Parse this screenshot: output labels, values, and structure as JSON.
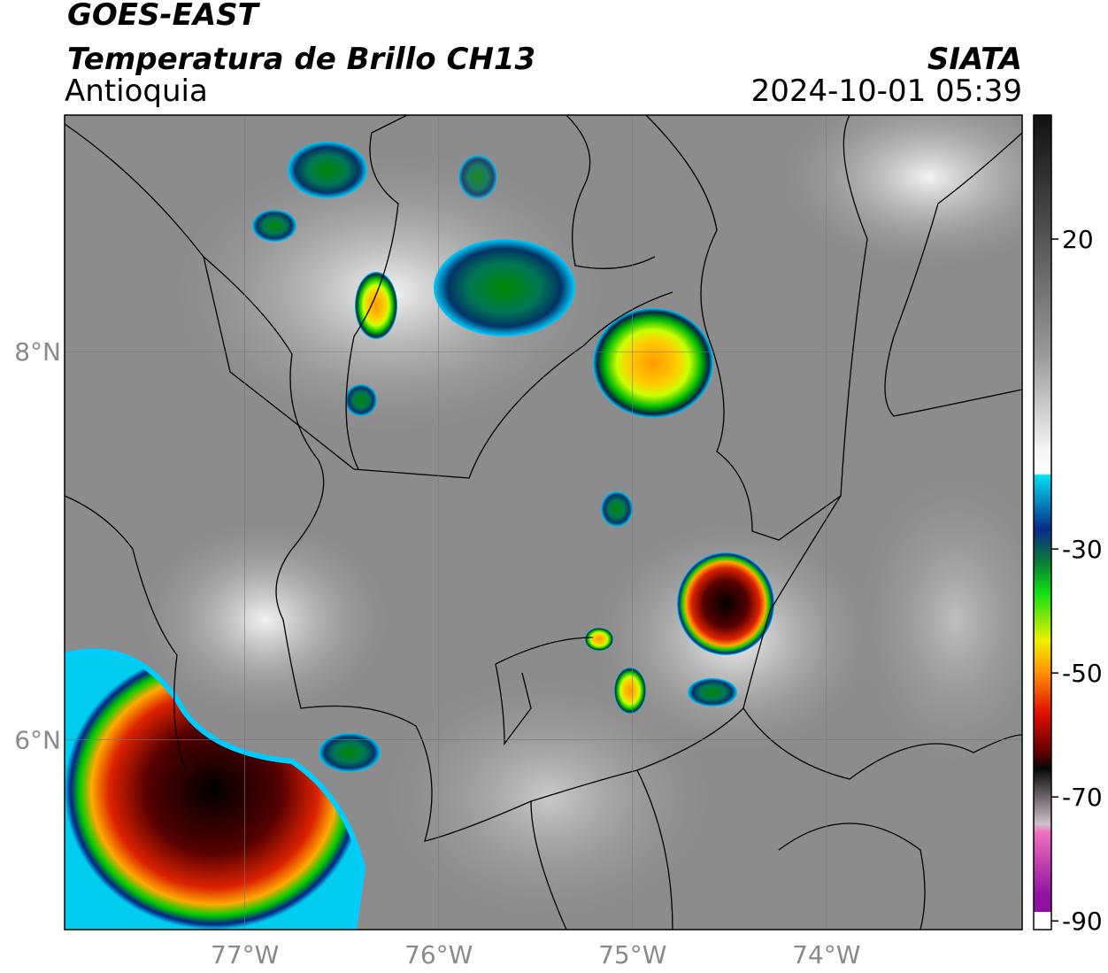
{
  "header": {
    "line1": "GOES-EAST",
    "line2": "Temperatura de Brillo CH13",
    "line3": "Antioquia",
    "source": "SIATA",
    "datetime": "2024-10-01 05:39"
  },
  "map": {
    "lon_range": [
      -77.93,
      -72.99
    ],
    "lat_range": [
      5.02,
      9.22
    ],
    "lat_ticks": [
      {
        "value": 8,
        "label": "8°N"
      },
      {
        "value": 6,
        "label": "6°N"
      }
    ],
    "lon_ticks": [
      {
        "value": -77,
        "label": "77°W"
      },
      {
        "value": -76,
        "label": "76°W"
      },
      {
        "value": -75,
        "label": "75°W"
      },
      {
        "value": -74,
        "label": "74°W"
      }
    ],
    "grid": true
  },
  "colorbar": {
    "lim": [
      -91.4,
      40
    ],
    "ticks": [
      20,
      -30,
      -50,
      -70,
      -90
    ]
  }
}
